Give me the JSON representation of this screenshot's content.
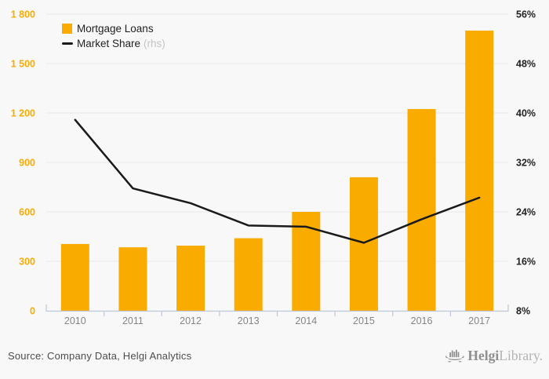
{
  "chart_data": {
    "type": "bar+line combo",
    "categories": [
      "2010",
      "2011",
      "2012",
      "2013",
      "2014",
      "2015",
      "2016",
      "2017"
    ],
    "series": [
      {
        "name": "Mortgage Loans",
        "type": "bar",
        "axis": "left",
        "color": "#F9AB00",
        "values": [
          405,
          385,
          395,
          440,
          600,
          810,
          1224,
          1700
        ]
      },
      {
        "name": "Market Share",
        "axis_note": "(rhs)",
        "type": "line",
        "axis": "right",
        "color": "#1A1A1A",
        "values": [
          38.9,
          27.8,
          25.4,
          21.8,
          21.6,
          19.0,
          22.8,
          26.3
        ]
      }
    ],
    "left_axis": {
      "min": 0,
      "max": 1800,
      "step": 300,
      "tick_labels": [
        "0",
        "300",
        "600",
        "900",
        "1 200",
        "1 500",
        "1 800"
      ]
    },
    "right_axis": {
      "min": 8,
      "max": 56,
      "step": 8,
      "tick_labels": [
        "8%",
        "16%",
        "24%",
        "32%",
        "40%",
        "48%",
        "56%"
      ]
    },
    "grid": true,
    "legend_position": "top-left"
  },
  "footer": {
    "source": "Source: Company Data, Helgi Analytics",
    "logo_primary": "Helgi",
    "logo_secondary": "Library."
  },
  "colors": {
    "bar": "#F9AB00",
    "line": "#1A1A1A",
    "background": "#F8F8F8",
    "gridline": "#E9E9E9",
    "axis": "#BDC6DB",
    "left_tick_text": "#F9AB00",
    "right_tick_text": "#222222",
    "year_text": "#858585",
    "legend_text": "#1F1F1F",
    "rhs_note": "#C4C4C4",
    "source_text": "#4D4D4D",
    "logo_gray": "#8F8F8F",
    "logo_light": "#B3B3B3"
  }
}
